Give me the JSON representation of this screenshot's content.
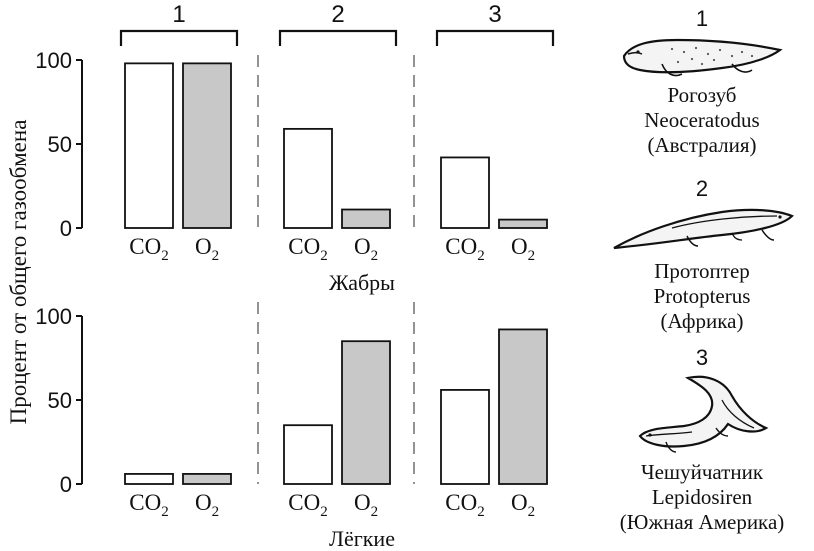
{
  "chart_data": {
    "type": "bar",
    "ylabel": "Процент от общего газообмена",
    "ylim": [
      0,
      100
    ],
    "yticks": [
      0,
      50,
      100
    ],
    "groups": [
      "1",
      "2",
      "3"
    ],
    "categories": [
      "CO",
      "O"
    ],
    "category_subscript": "2",
    "panels": [
      {
        "name": "gills",
        "xlabel": "Жабры",
        "series": [
          {
            "group": "1",
            "values": [
              98,
              98
            ]
          },
          {
            "group": "2",
            "values": [
              59,
              11
            ]
          },
          {
            "group": "3",
            "values": [
              42,
              5
            ]
          }
        ]
      },
      {
        "name": "lungs",
        "xlabel": "Лёгкие",
        "series": [
          {
            "group": "1",
            "values": [
              6,
              6
            ]
          },
          {
            "group": "2",
            "values": [
              35,
              85
            ]
          },
          {
            "group": "3",
            "values": [
              56,
              92
            ]
          }
        ]
      }
    ],
    "colors": {
      "CO": "#ffffff",
      "O": "#c8c8c8"
    }
  },
  "species": [
    {
      "num": "1",
      "lines": [
        "Рогозуб",
        "Neoceratodus",
        "(Австралия)"
      ],
      "icon": "lungfish-neoceratodus-icon"
    },
    {
      "num": "2",
      "lines": [
        "Протоптер",
        "Protopterus",
        "(Африка)"
      ],
      "icon": "lungfish-protopterus-icon"
    },
    {
      "num": "3",
      "lines": [
        "Чешуйчатник",
        "Lepidosiren",
        "(Южная Америка)"
      ],
      "icon": "lungfish-lepidosiren-icon"
    }
  ]
}
